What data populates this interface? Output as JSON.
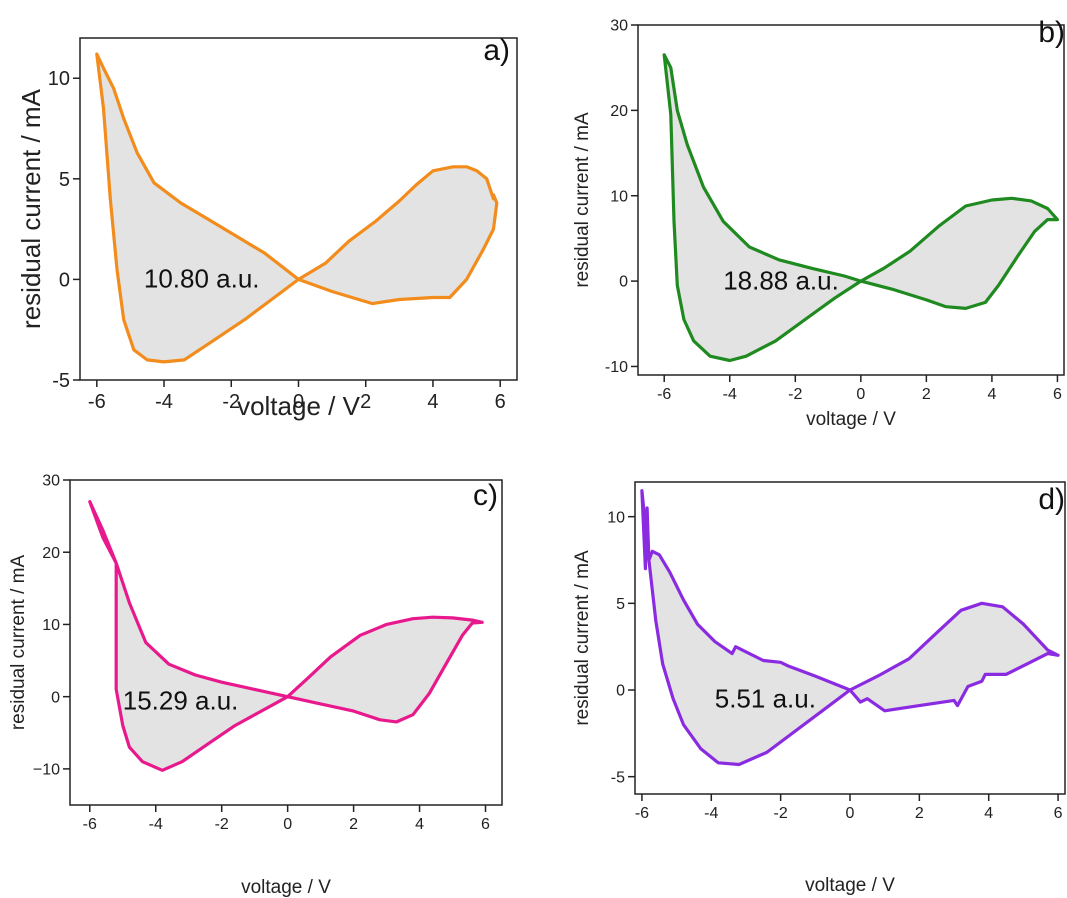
{
  "chart_data": [
    {
      "type": "line",
      "panel_label": "a)",
      "annotation": "10.80 a.u.",
      "xlabel": "voltage / V",
      "ylabel": "residual current / mA",
      "xlim": [
        -6.5,
        6.5
      ],
      "ylim": [
        -5,
        12
      ],
      "xticks": [
        -6,
        -4,
        -2,
        0,
        2,
        4,
        6
      ],
      "yticks": [
        -5,
        0,
        5,
        10
      ],
      "ytick_labels": [
        "-5",
        "0",
        "5",
        "10"
      ],
      "color": "#f28c1c",
      "fill_color": "#e3e3e3",
      "series": [
        {
          "x": [
            -6.0,
            -5.8,
            -5.5,
            -5.2,
            -4.8,
            -4.3,
            -3.5,
            -2.8,
            -2.0,
            -1.0,
            0.0,
            1.0,
            2.2,
            3.0,
            4.0,
            4.5,
            5.0,
            5.5,
            5.8,
            5.9,
            5.8,
            5.8,
            5.6,
            5.3,
            5.0,
            4.6,
            4.0,
            3.5,
            3.0,
            2.3,
            1.5,
            0.8,
            0.0,
            -0.8,
            -1.6,
            -2.5,
            -3.4,
            -4.0,
            -4.5,
            -4.9,
            -5.2,
            -5.4,
            -5.6,
            -5.8,
            -6.0
          ],
          "y": [
            11.2,
            10.5,
            9.5,
            8.0,
            6.3,
            4.8,
            3.8,
            3.1,
            2.3,
            1.3,
            0.0,
            -0.6,
            -1.2,
            -1.0,
            -0.9,
            -0.9,
            0.0,
            1.5,
            2.5,
            3.8,
            4.2,
            4.0,
            5.0,
            5.4,
            5.6,
            5.6,
            5.4,
            4.7,
            3.9,
            2.9,
            1.9,
            0.8,
            0.0,
            -1.0,
            -2.0,
            -3.0,
            -4.0,
            -4.1,
            -4.0,
            -3.5,
            -2.0,
            0.5,
            4.0,
            8.5,
            11.2
          ]
        }
      ]
    },
    {
      "type": "line",
      "panel_label": "b)",
      "annotation": "18.88 a.u.",
      "xlabel": "voltage / V",
      "ylabel": "residual current / mA",
      "xlim": [
        -6.8,
        6.2
      ],
      "ylim": [
        -11,
        30
      ],
      "xticks": [
        -6,
        -4,
        -2,
        0,
        2,
        4,
        6
      ],
      "yticks": [
        -10,
        0,
        10,
        20,
        30
      ],
      "ytick_labels": [
        "-10",
        "0",
        "10",
        "20",
        "30"
      ],
      "color": "#1f8a1f",
      "fill_color": "#e3e3e3",
      "series": [
        {
          "x": [
            -6.0,
            -5.8,
            -5.6,
            -5.3,
            -4.8,
            -4.2,
            -3.4,
            -2.5,
            -1.5,
            -0.5,
            0.0,
            1.0,
            2.0,
            2.6,
            3.2,
            3.8,
            4.2,
            4.8,
            5.3,
            5.7,
            6.0,
            5.7,
            5.2,
            4.6,
            4.0,
            3.2,
            2.4,
            1.5,
            0.7,
            0.0,
            -0.8,
            -1.7,
            -2.6,
            -3.5,
            -4.0,
            -4.6,
            -5.1,
            -5.4,
            -5.6,
            -5.7,
            -5.8,
            -6.0
          ],
          "y": [
            26.5,
            25.0,
            20.0,
            16.0,
            11.0,
            7.0,
            4.0,
            2.5,
            1.5,
            0.6,
            0.0,
            -1.0,
            -2.2,
            -3.0,
            -3.2,
            -2.5,
            -0.5,
            3.0,
            5.8,
            7.2,
            7.2,
            8.5,
            9.4,
            9.7,
            9.5,
            8.8,
            6.5,
            3.5,
            1.5,
            0.0,
            -2.0,
            -4.5,
            -7.0,
            -8.8,
            -9.3,
            -8.8,
            -7.0,
            -4.5,
            -0.5,
            7.0,
            19.5,
            26.5
          ]
        }
      ]
    },
    {
      "type": "line",
      "panel_label": "c)",
      "annotation": "15.29 a.u.",
      "xlabel": "voltage / V",
      "ylabel": "residual current / mA",
      "xlim": [
        -6.6,
        6.5
      ],
      "ylim": [
        -15,
        30
      ],
      "xticks": [
        -6,
        -4,
        -2,
        0,
        2,
        4,
        6
      ],
      "yticks": [
        -10,
        0,
        10,
        20,
        30
      ],
      "ytick_labels": [
        "−10",
        "0",
        "10",
        "20",
        "30"
      ],
      "color": "#e8198c",
      "fill_color": "#e3e3e3",
      "series": [
        {
          "x": [
            -6.0,
            -5.6,
            -5.2,
            -4.8,
            -4.3,
            -3.6,
            -2.8,
            -2.0,
            -1.0,
            0.0,
            1.0,
            2.0,
            2.8,
            3.3,
            3.8,
            4.3,
            4.8,
            5.3,
            5.6,
            5.9,
            5.6,
            5.0,
            4.4,
            3.8,
            3.0,
            2.2,
            1.3,
            0.6,
            0.0,
            -0.8,
            -1.6,
            -2.4,
            -3.2,
            -3.8,
            -4.4,
            -4.8,
            -5.0,
            -5.2,
            -5.2,
            -5.6,
            -6.0
          ],
          "y": [
            27.0,
            23.0,
            18.5,
            13.0,
            7.5,
            4.5,
            3.0,
            2.0,
            1.0,
            0.0,
            -1.0,
            -2.0,
            -3.2,
            -3.5,
            -2.5,
            0.5,
            4.5,
            8.5,
            10.2,
            10.3,
            10.6,
            10.9,
            11.0,
            10.8,
            10.0,
            8.5,
            5.5,
            2.5,
            0.0,
            -2.0,
            -4.0,
            -6.5,
            -9.0,
            -10.2,
            -9.0,
            -7.0,
            -4.0,
            1.0,
            18.5,
            22.0,
            27.0
          ]
        }
      ]
    },
    {
      "type": "line",
      "panel_label": "d)",
      "annotation": "5.51 a.u.",
      "xlabel": "voltage / V",
      "ylabel": "residual current / mA",
      "xlim": [
        -6.2,
        6.2
      ],
      "ylim": [
        -6,
        12
      ],
      "xticks": [
        -6,
        -4,
        -2,
        0,
        2,
        4,
        6
      ],
      "yticks": [
        -5,
        0,
        5,
        10
      ],
      "ytick_labels": [
        "-5",
        "0",
        "5",
        "10"
      ],
      "color": "#8a2be2",
      "fill_color": "#e3e3e3",
      "series": [
        {
          "x": [
            -6.0,
            -5.9,
            -5.85,
            -5.8,
            -5.7,
            -5.5,
            -5.2,
            -4.8,
            -4.4,
            -3.9,
            -3.4,
            -3.3,
            -2.5,
            -2.0,
            -1.8,
            -1.0,
            0.0,
            0.3,
            0.5,
            1.0,
            2.0,
            3.0,
            3.1,
            3.4,
            3.8,
            3.9,
            4.5,
            5.2,
            5.7,
            6.0,
            5.7,
            5.0,
            4.4,
            3.8,
            3.2,
            2.5,
            1.7,
            0.8,
            0.0,
            -0.8,
            -1.6,
            -2.4,
            -3.2,
            -3.8,
            -4.3,
            -4.8,
            -5.1,
            -5.4,
            -5.6,
            -5.8,
            -6.0
          ],
          "y": [
            11.5,
            7.0,
            10.5,
            7.5,
            8.0,
            7.8,
            6.8,
            5.2,
            3.8,
            2.8,
            2.1,
            2.5,
            1.7,
            1.6,
            1.4,
            0.8,
            0.0,
            -0.7,
            -0.5,
            -1.2,
            -0.9,
            -0.6,
            -0.9,
            0.2,
            0.5,
            0.9,
            0.9,
            1.6,
            2.1,
            2.0,
            2.3,
            3.8,
            4.8,
            5.0,
            4.6,
            3.3,
            1.8,
            0.8,
            0.0,
            -1.2,
            -2.4,
            -3.6,
            -4.3,
            -4.2,
            -3.4,
            -2.0,
            -0.5,
            1.5,
            4.0,
            7.5,
            11.5
          ]
        }
      ]
    }
  ]
}
